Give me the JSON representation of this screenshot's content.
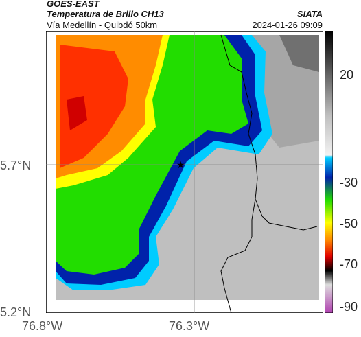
{
  "header": {
    "satellite": "GOES-EAST",
    "product": "Temperatura de Brillo CH13",
    "route": "Vía Medellín - Quibdó 50km",
    "org": "SIATA",
    "timestamp": "2024-01-26 09:09"
  },
  "map": {
    "lat_ticks": [
      "5.7°N",
      "5.2°N"
    ],
    "lon_ticks": [
      "76.8°W",
      "76.3°W"
    ],
    "marker": "star",
    "gridlines": true
  },
  "colorbar": {
    "ticks": [
      "20",
      "-30",
      "-50",
      "-70",
      "-90"
    ],
    "colors": {
      "deep": "#b040b0",
      "black": "#000000",
      "red": "#e00000",
      "orange": "#ff8000",
      "yellow": "#ffff00",
      "green": "#00cc00",
      "blue": "#0000aa",
      "cyan": "#00ccff",
      "gray": "#aaaaaa"
    }
  }
}
